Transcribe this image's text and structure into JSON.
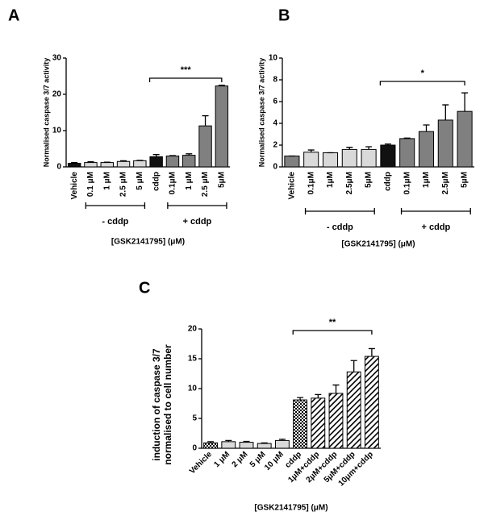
{
  "chart_data": [
    {
      "type": "bar",
      "panel": "A",
      "ylabel": "Normalised caspase 3/7 activity",
      "xlabel": "[GSK2141795] (μM)",
      "categories": [
        "Vehicle",
        "0.1 μM",
        "1 μM",
        "2.5 μM",
        "5 μM",
        "cddp",
        "0.1μM",
        "1 μM",
        "2.5 μM",
        "5μM"
      ],
      "values": [
        1.0,
        1.2,
        1.2,
        1.5,
        1.7,
        2.8,
        3.0,
        3.2,
        11.3,
        22.3
      ],
      "errors": [
        0.2,
        0.2,
        0.1,
        0.2,
        0.1,
        0.6,
        0.1,
        0.4,
        2.8,
        0.2
      ],
      "colors": [
        "#111111",
        "#d9d9d9",
        "#d9d9d9",
        "#d9d9d9",
        "#d9d9d9",
        "#111111",
        "#808080",
        "#808080",
        "#808080",
        "#808080"
      ],
      "groups": [
        "- cddp",
        "+ cddp"
      ],
      "annotation": "***",
      "ylim": [
        0,
        30
      ],
      "yticks": [
        0,
        10,
        20,
        30
      ]
    },
    {
      "type": "bar",
      "panel": "B",
      "ylabel": "Normalised caspase 3/7 activity",
      "xlabel": "[GSK2141795] (μM)",
      "categories": [
        "Vehicle",
        "0.1μM",
        "1μM",
        "2.5μM",
        "5μM",
        "cddp",
        "0.1μM",
        "1μM",
        "2.5μM",
        "5μM"
      ],
      "values": [
        1.0,
        1.35,
        1.3,
        1.6,
        1.6,
        2.0,
        2.6,
        3.25,
        4.3,
        5.1
      ],
      "errors": [
        0,
        0.2,
        0,
        0.2,
        0.25,
        0.1,
        0.05,
        0.6,
        1.4,
        1.7
      ],
      "colors": [
        "#808080",
        "#d9d9d9",
        "#d9d9d9",
        "#d9d9d9",
        "#d9d9d9",
        "#111111",
        "#808080",
        "#808080",
        "#808080",
        "#808080"
      ],
      "groups": [
        "- cddp",
        "+ cddp"
      ],
      "annotation": "*",
      "ylim": [
        0,
        10
      ],
      "yticks": [
        0,
        2,
        4,
        6,
        8,
        10
      ]
    },
    {
      "type": "bar",
      "panel": "C",
      "ylabel": [
        "induction of caspase 3/7",
        "normalised to cell number"
      ],
      "xlabel": "[GSK2141795] (μM)",
      "categories": [
        "Vehicle",
        "1 μM",
        "2 μM",
        "5 μM",
        "10 μM",
        "cddp",
        "1μM+cddp",
        "2μM+cddp",
        "5μM+cddp",
        "10μm+cddp"
      ],
      "values": [
        0.9,
        1.1,
        1.0,
        0.8,
        1.3,
        8.1,
        8.4,
        9.2,
        12.8,
        15.4
      ],
      "errors": [
        0.2,
        0.2,
        0.15,
        0.1,
        0.2,
        0.4,
        0.6,
        1.4,
        1.9,
        1.3
      ],
      "colors": [
        "checker",
        "#d9d9d9",
        "#d9d9d9",
        "#d9d9d9",
        "#d9d9d9",
        "checker",
        "hatch",
        "hatch",
        "hatch",
        "hatch"
      ],
      "annotation": "**",
      "ylim": [
        0,
        20
      ],
      "yticks": [
        0,
        5,
        10,
        15,
        20
      ]
    }
  ]
}
